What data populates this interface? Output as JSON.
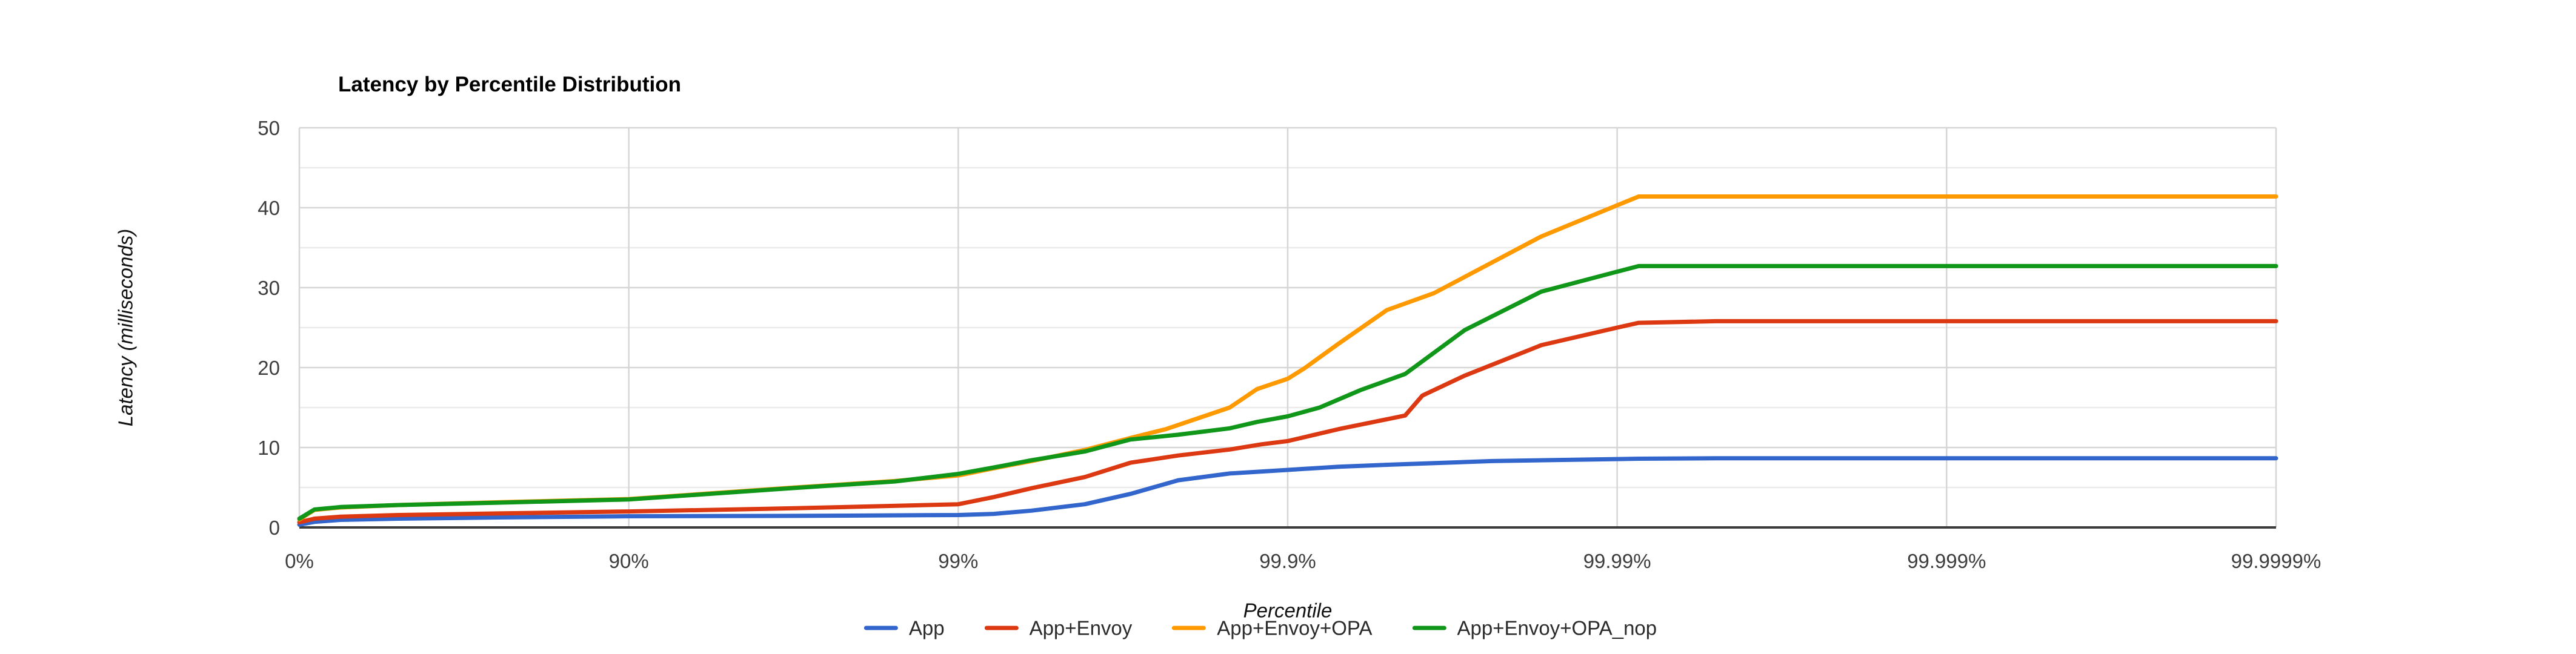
{
  "chart_data": {
    "type": "line",
    "title": "Latency by Percentile Distribution",
    "xlabel": "Percentile",
    "ylabel": "Latency (milliseconds)",
    "x_scale": "logarithmic percentile (decades of 1/(1-p))",
    "x_ticks": [
      "0%",
      "90%",
      "99%",
      "99.9%",
      "99.99%",
      "99.999%",
      "99.9999%"
    ],
    "y_ticks": [
      0,
      10,
      20,
      30,
      40,
      50
    ],
    "ylim": [
      0,
      50
    ],
    "grid": {
      "y_major_step": 10,
      "y_minor_step": 5,
      "x_gridlines_at_ticks": true
    },
    "legend_position": "bottom",
    "style": {
      "grid_major_color": "#d6d6d6",
      "grid_minor_color": "#ebebeb",
      "axis_line_color": "#3c3c3c",
      "tick_text_color": "#3d3d3d",
      "title_color": "#000000",
      "background": "#ffffff",
      "line_width": 7
    },
    "series": [
      {
        "name": "App",
        "color": "#3366CC",
        "plateau_ms": 8.65,
        "points": [
          [
            0,
            0.35
          ],
          [
            10,
            0.7
          ],
          [
            25,
            0.95
          ],
          [
            50,
            1.1
          ],
          [
            75,
            1.25
          ],
          [
            90,
            1.4
          ],
          [
            96.875,
            1.45
          ],
          [
            99,
            1.55
          ],
          [
            99.22,
            1.7
          ],
          [
            99.4,
            2.1
          ],
          [
            99.587,
            2.9
          ],
          [
            99.7,
            4.2
          ],
          [
            99.785,
            5.9
          ],
          [
            99.85,
            6.75
          ],
          [
            99.9,
            7.2
          ],
          [
            99.93,
            7.6
          ],
          [
            99.951,
            7.85
          ],
          [
            99.976,
            8.3
          ],
          [
            99.99,
            8.55
          ],
          [
            99.9914,
            8.6
          ],
          [
            99.995,
            8.65
          ],
          [
            99.999,
            8.65
          ],
          [
            99.9999,
            8.65
          ]
        ]
      },
      {
        "name": "App+Envoy",
        "color": "#DC3912",
        "plateau_ms": 25.8,
        "points": [
          [
            0,
            0.65
          ],
          [
            10,
            1.1
          ],
          [
            25,
            1.35
          ],
          [
            50,
            1.55
          ],
          [
            75,
            1.75
          ],
          [
            90,
            2.0
          ],
          [
            96.875,
            2.4
          ],
          [
            99,
            2.9
          ],
          [
            99.22,
            3.8
          ],
          [
            99.4,
            4.9
          ],
          [
            99.587,
            6.3
          ],
          [
            99.7,
            8.1
          ],
          [
            99.785,
            9.0
          ],
          [
            99.85,
            9.75
          ],
          [
            99.88,
            10.4
          ],
          [
            99.9,
            10.8
          ],
          [
            99.93,
            12.3
          ],
          [
            99.956,
            14.0
          ],
          [
            99.961,
            16.5
          ],
          [
            99.971,
            19.0
          ],
          [
            99.983,
            22.8
          ],
          [
            99.99,
            25.0
          ],
          [
            99.9914,
            25.6
          ],
          [
            99.995,
            25.8
          ],
          [
            99.999,
            25.8
          ],
          [
            99.9999,
            25.8
          ]
        ]
      },
      {
        "name": "App+Envoy+OPA",
        "color": "#FF9900",
        "plateau_ms": 41.4,
        "points": [
          [
            0,
            1.0
          ],
          [
            10,
            2.2
          ],
          [
            25,
            2.5
          ],
          [
            50,
            2.8
          ],
          [
            75,
            3.15
          ],
          [
            90,
            3.55
          ],
          [
            96.875,
            5.0
          ],
          [
            98.44,
            5.8
          ],
          [
            99,
            6.5
          ],
          [
            99.22,
            7.4
          ],
          [
            99.4,
            8.3
          ],
          [
            99.587,
            9.7
          ],
          [
            99.7,
            11.2
          ],
          [
            99.766,
            12.3
          ],
          [
            99.85,
            15.0
          ],
          [
            99.876,
            17.3
          ],
          [
            99.9,
            18.6
          ],
          [
            99.911,
            19.9
          ],
          [
            99.93,
            23.0
          ],
          [
            99.95,
            27.2
          ],
          [
            99.964,
            29.3
          ],
          [
            99.983,
            36.4
          ],
          [
            99.99,
            40.3
          ],
          [
            99.9914,
            41.4
          ],
          [
            99.995,
            41.4
          ],
          [
            99.999,
            41.4
          ],
          [
            99.9999,
            41.4
          ]
        ]
      },
      {
        "name": "App+Envoy+OPA_nop",
        "color": "#109618",
        "plateau_ms": 32.7,
        "points": [
          [
            0,
            1.1
          ],
          [
            10,
            2.25
          ],
          [
            25,
            2.55
          ],
          [
            50,
            2.8
          ],
          [
            75,
            3.1
          ],
          [
            90,
            3.5
          ],
          [
            96.875,
            4.95
          ],
          [
            98.44,
            5.75
          ],
          [
            99,
            6.7
          ],
          [
            99.22,
            7.5
          ],
          [
            99.4,
            8.4
          ],
          [
            99.587,
            9.5
          ],
          [
            99.7,
            11.0
          ],
          [
            99.785,
            11.6
          ],
          [
            99.85,
            12.4
          ],
          [
            99.876,
            13.2
          ],
          [
            99.9,
            13.9
          ],
          [
            99.92,
            15.0
          ],
          [
            99.94,
            17.2
          ],
          [
            99.956,
            19.2
          ],
          [
            99.971,
            24.7
          ],
          [
            99.983,
            29.5
          ],
          [
            99.99,
            32.0
          ],
          [
            99.9914,
            32.7
          ],
          [
            99.995,
            32.7
          ],
          [
            99.999,
            32.7
          ],
          [
            99.9999,
            32.7
          ]
        ]
      }
    ]
  }
}
